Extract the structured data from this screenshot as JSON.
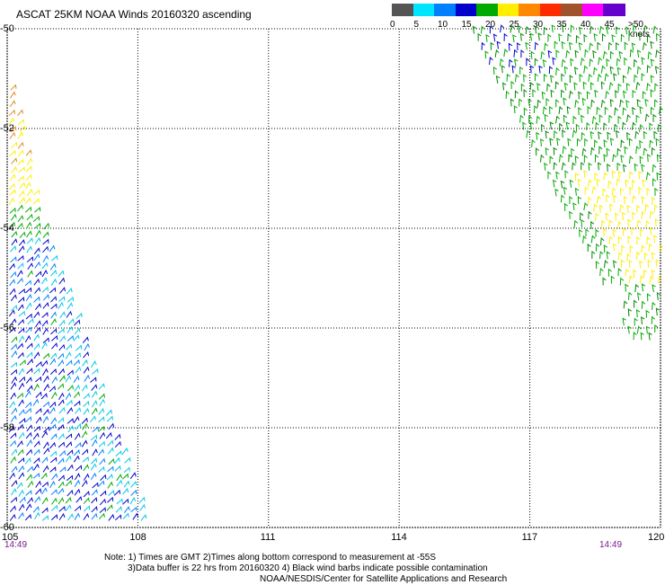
{
  "title": "ASCAT 25KM NOAA Winds 20160320 ascending",
  "legend": {
    "labels": [
      "0",
      "5",
      "10",
      "15",
      "20",
      "25",
      "30",
      "35",
      "40",
      "45",
      ">50 knots"
    ],
    "colors": [
      "#555555",
      "#00e5ff",
      "#0080ff",
      "#0000cc",
      "#00aa00",
      "#ffee00",
      "#ff8800",
      "#ff2a00",
      "#a0522d",
      "#ff00ff",
      "#6600cc"
    ]
  },
  "axes": {
    "lat_labels": [
      "-50",
      "-52",
      "-54",
      "-56",
      "-58",
      "-60"
    ],
    "lon_labels": [
      "105",
      "108",
      "111",
      "114",
      "117",
      "120"
    ],
    "lat_values": [
      -50,
      -52,
      -54,
      -56,
      -58,
      -60
    ],
    "lon_values": [
      105,
      108,
      111,
      114,
      117,
      120
    ],
    "lat_range": [
      -60,
      -50
    ],
    "lon_range": [
      105,
      120
    ],
    "grid": "dotted"
  },
  "times": {
    "left": "14:49",
    "right": "14:49"
  },
  "notes": {
    "line1": "Note: 1) Times are GMT 2)Times along bottom correspond to measurement at -55S",
    "line2": "3)Data buffer is 22 hrs from 20160320 4) Black wind barbs indicate possible contamination",
    "line3": "NOAA/NESDIS/Center for Satellite Applications and Research"
  }
}
